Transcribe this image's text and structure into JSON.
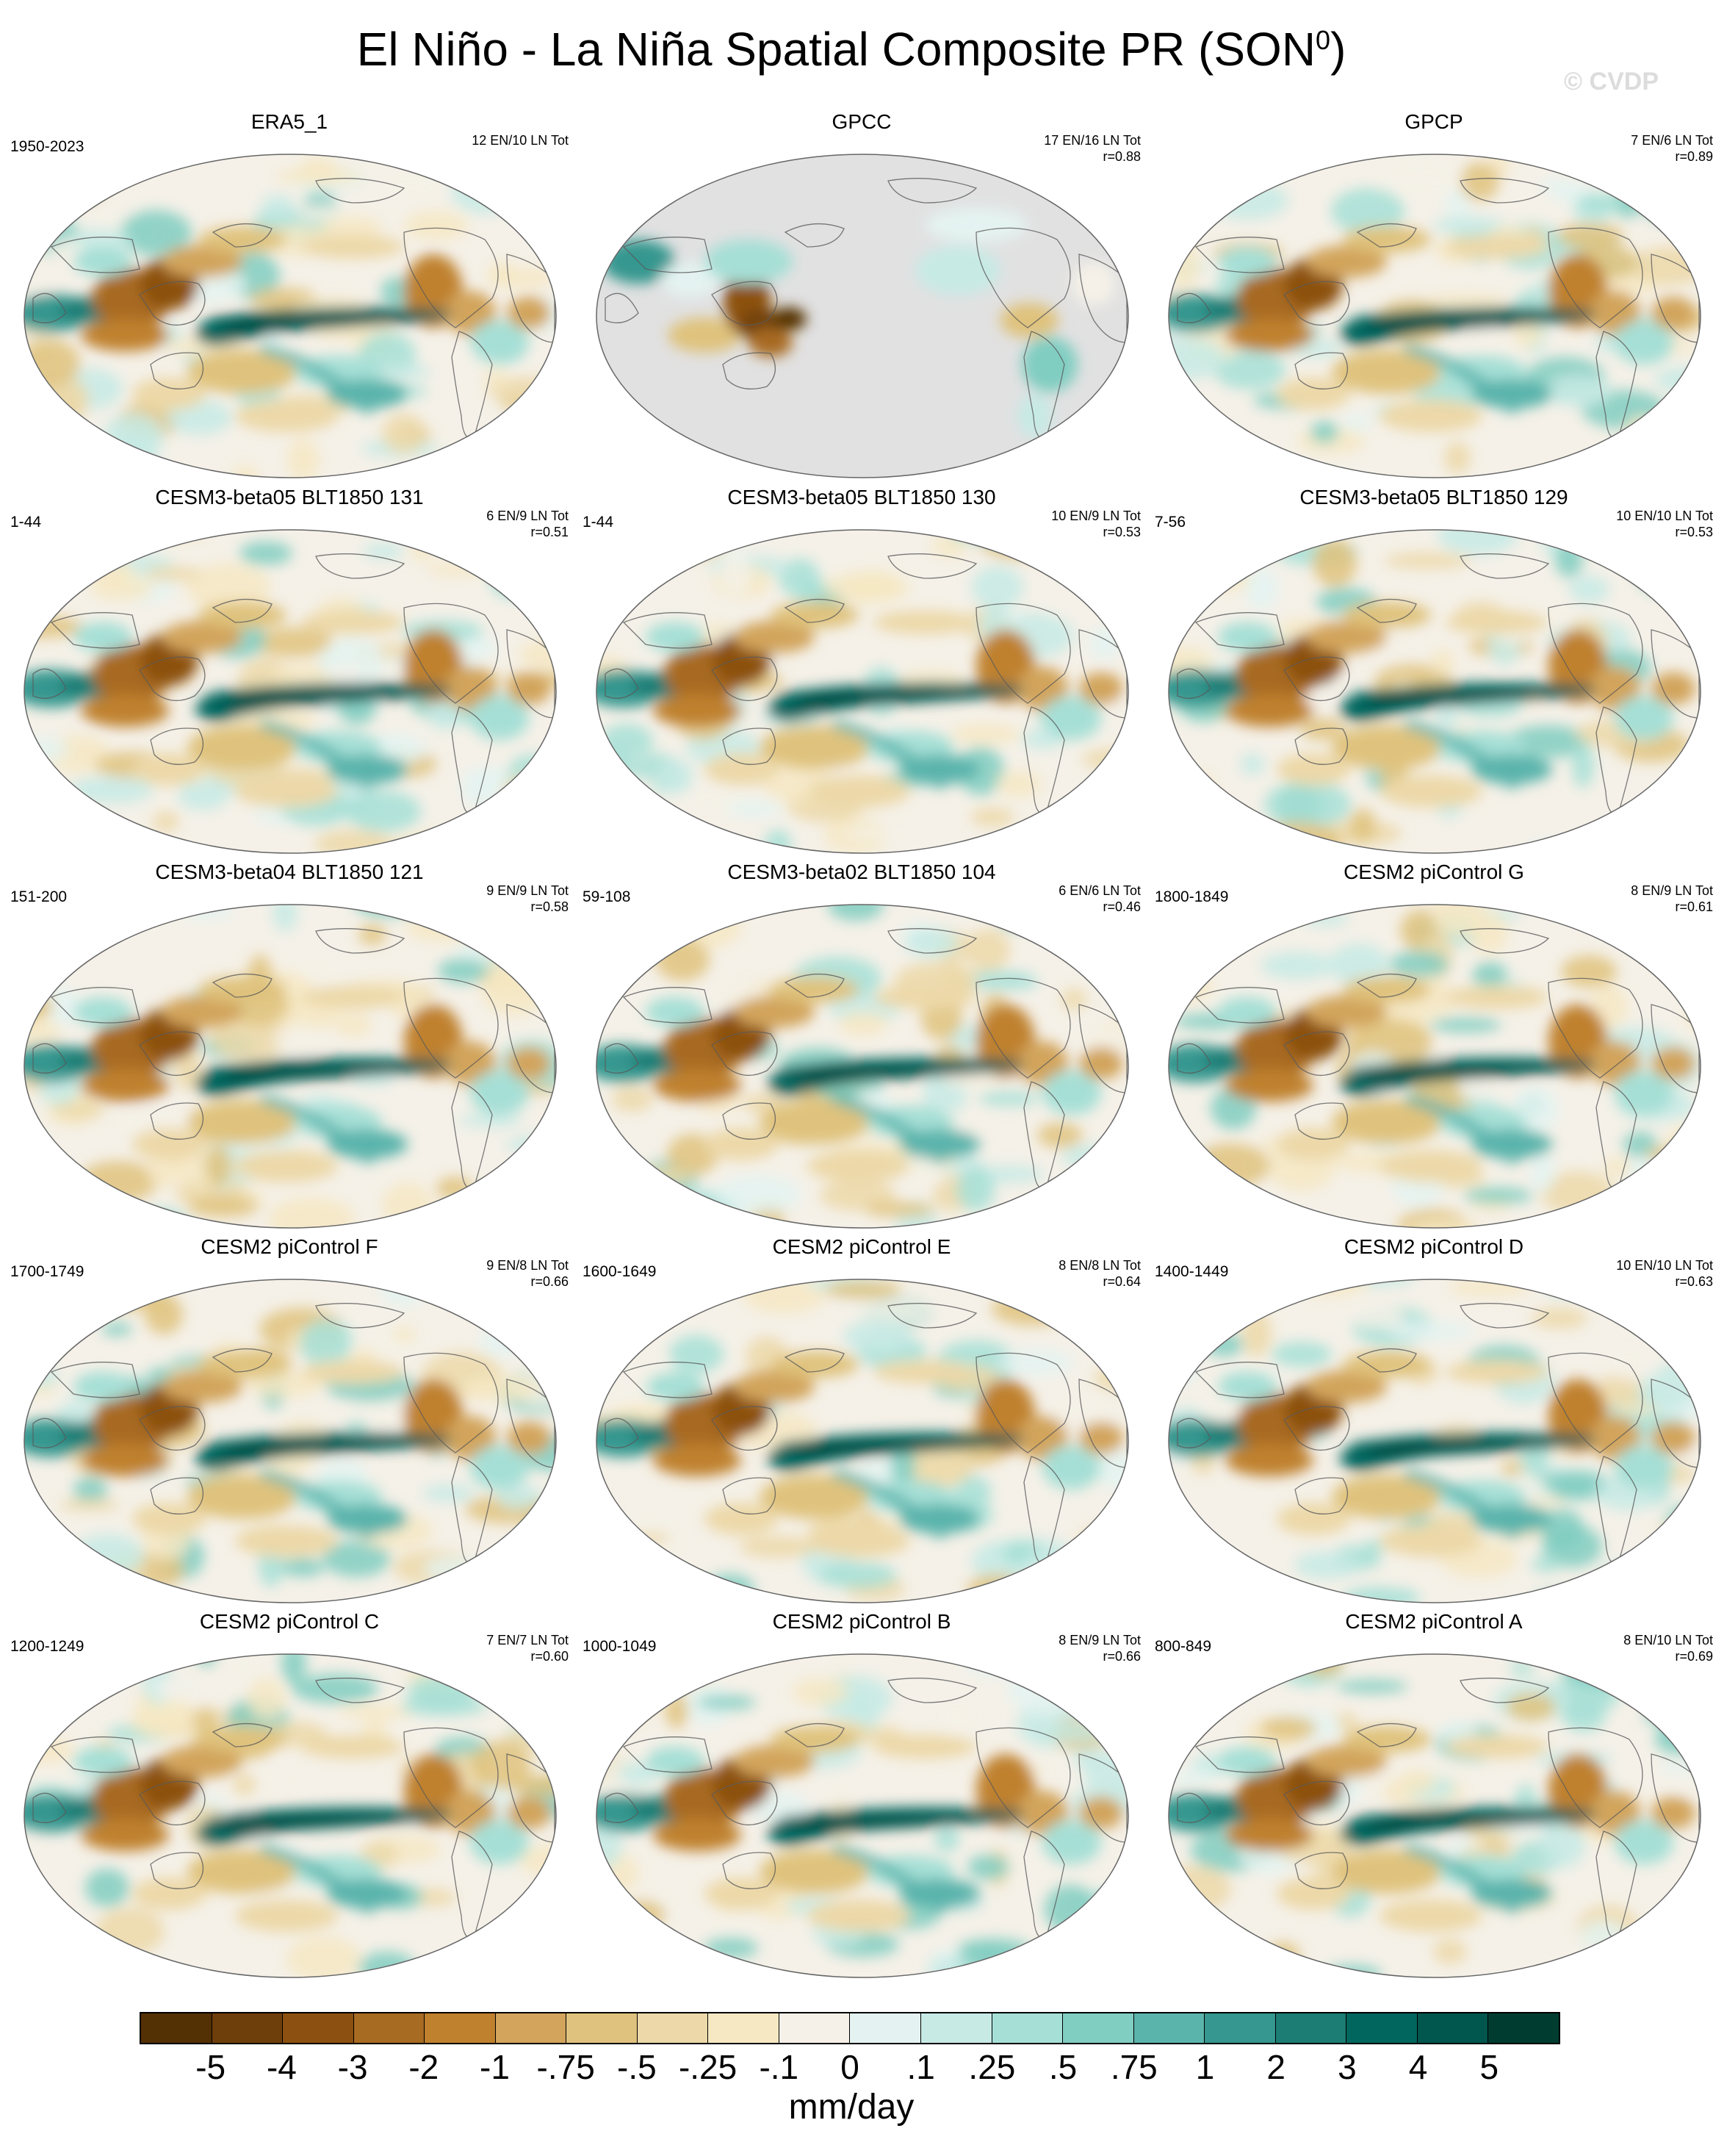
{
  "title": {
    "main": "El Niño - La Niña Spatial Composite PR (SON",
    "sup": "0",
    "close": ")"
  },
  "watermark": "© CVDP",
  "panels": [
    {
      "title": "ERA5_1",
      "years": "1950-2023",
      "counts": "12 EN/10 LN Tot",
      "corr": "",
      "variant": "obs"
    },
    {
      "title": "GPCC",
      "years": "",
      "counts": "17 EN/16 LN Tot",
      "corr": "r=0.88",
      "variant": "land"
    },
    {
      "title": "GPCP",
      "years": "",
      "counts": "7 EN/6 LN Tot",
      "corr": "r=0.89",
      "variant": "obs"
    },
    {
      "title": "CESM3-beta05 BLT1850 131",
      "years": "1-44",
      "counts": "6 EN/9 LN Tot",
      "corr": "r=0.51",
      "variant": "model"
    },
    {
      "title": "CESM3-beta05 BLT1850 130",
      "years": "1-44",
      "counts": "10 EN/9 LN Tot",
      "corr": "r=0.53",
      "variant": "model"
    },
    {
      "title": "CESM3-beta05 BLT1850 129",
      "years": "7-56",
      "counts": "10 EN/10 LN Tot",
      "corr": "r=0.53",
      "variant": "model"
    },
    {
      "title": "CESM3-beta04 BLT1850 121",
      "years": "151-200",
      "counts": "9 EN/9 LN Tot",
      "corr": "r=0.58",
      "variant": "model"
    },
    {
      "title": "CESM3-beta02 BLT1850 104",
      "years": "59-108",
      "counts": "6 EN/6 LN Tot",
      "corr": "r=0.46",
      "variant": "model"
    },
    {
      "title": "CESM2 piControl G",
      "years": "1800-1849",
      "counts": "8 EN/9 LN Tot",
      "corr": "r=0.61",
      "variant": "model"
    },
    {
      "title": "CESM2 piControl F",
      "years": "1700-1749",
      "counts": "9 EN/8 LN Tot",
      "corr": "r=0.66",
      "variant": "model"
    },
    {
      "title": "CESM2 piControl E",
      "years": "1600-1649",
      "counts": "8 EN/8 LN Tot",
      "corr": "r=0.64",
      "variant": "model"
    },
    {
      "title": "CESM2 piControl D",
      "years": "1400-1449",
      "counts": "10 EN/10 LN Tot",
      "corr": "r=0.63",
      "variant": "model"
    },
    {
      "title": "CESM2 piControl C",
      "years": "1200-1249",
      "counts": "7 EN/7 LN Tot",
      "corr": "r=0.60",
      "variant": "model"
    },
    {
      "title": "CESM2 piControl B",
      "years": "1000-1049",
      "counts": "8 EN/9 LN Tot",
      "corr": "r=0.66",
      "variant": "model"
    },
    {
      "title": "CESM2 piControl A",
      "years": "800-849",
      "counts": "8 EN/10 LN Tot",
      "corr": "r=0.69",
      "variant": "model"
    }
  ],
  "colorbar": {
    "colors": [
      "#543005",
      "#6f3f0b",
      "#8c5110",
      "#a86b22",
      "#bf812d",
      "#d2a45c",
      "#dfc27d",
      "#ecd8a8",
      "#f6e8c3",
      "#f5f1e8",
      "#e4f3f1",
      "#c7eae5",
      "#a6dfd6",
      "#80cdc1",
      "#5ab4ac",
      "#35978f",
      "#1b7d74",
      "#01665e",
      "#01564e",
      "#003c30"
    ],
    "ticks": [
      "-5",
      "-4",
      "-3",
      "-2",
      "-1",
      "-.75",
      "-.5",
      "-.25",
      "-.1",
      "0",
      ".1",
      ".25",
      ".5",
      ".75",
      "1",
      "2",
      "3",
      "4",
      "5"
    ],
    "units": "mm/day"
  }
}
